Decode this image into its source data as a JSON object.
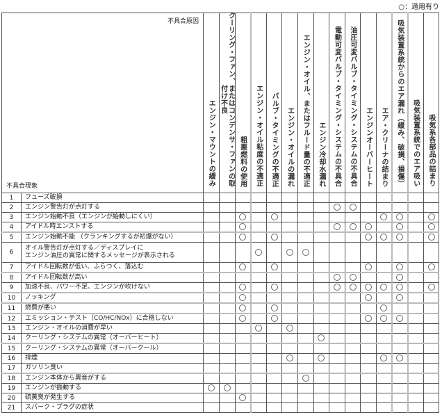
{
  "legend": "○：適用有り",
  "header": {
    "cause_title": "不具合原因",
    "symptom_title": "不具合現象"
  },
  "causes": [
    "エンジン・マウントの緩み",
    "クーリング・ファン、またはコンデンサ・ファンの取付け不良",
    "粗悪燃料の使用",
    "エンジン・オイル粘度の不適正",
    "バルブ・タイミングの不適正",
    "エンジン・オイルの漏れ",
    "エンジン・オイル、またはフルード量の不適正",
    "エンジン冷却水漏れ",
    "電動可変バルブ・タイミング・システムの不具合",
    "油圧可変バルブ・タイミング・システムの不具合",
    "エンジンオーバーヒート",
    "エア・クリーナの詰まり",
    "吸気装置系統からのエア漏れ（緩み、破損、損傷）",
    "吸気装置系統でのエア吸い",
    "吸気系各部品の詰まり"
  ],
  "mark_symbol": "○",
  "symptoms": [
    {
      "no": "1",
      "text": "フューズ破損",
      "marks": []
    },
    {
      "no": "2",
      "text": "エンジン警告灯が点灯する",
      "marks": [
        9,
        10
      ]
    },
    {
      "no": "3",
      "text": "エンジン始動不良（エンジンが始動しにくい）",
      "marks": [
        3,
        5,
        12,
        13,
        15
      ]
    },
    {
      "no": "4",
      "text": "アイドル時エンストする",
      "marks": [
        3,
        9,
        10,
        11,
        13,
        15
      ]
    },
    {
      "no": "5",
      "text": "エンジン始動不能 （クランキングするが初爆がない）",
      "marks": [
        3,
        5,
        11,
        12,
        13,
        15
      ]
    },
    {
      "no": "6",
      "text": "オイル警告灯が点灯する／ディスプレイに\nエンジン油圧の異常に関するメッセージが表示される",
      "marks": [
        4,
        6,
        7
      ]
    },
    {
      "no": "7",
      "text": "アイドル回転数が低い、ふらつく、落込む",
      "marks": [
        3,
        5,
        11,
        13,
        15
      ]
    },
    {
      "no": "8",
      "text": "アイドル回転数が高い",
      "marks": [
        9,
        10,
        13
      ]
    },
    {
      "no": "9",
      "text": "加速不良、パワー不足、エンジンが吹けない",
      "marks": [
        3,
        5,
        9,
        10,
        11,
        12,
        13,
        15
      ]
    },
    {
      "no": "10",
      "text": "ノッキング",
      "marks": [
        3,
        11,
        13
      ]
    },
    {
      "no": "11",
      "text": "燃費が悪い",
      "marks": [
        3,
        5,
        12
      ]
    },
    {
      "no": "12",
      "text": "エミッション・テスト（CO/HC/NOx）に合格しない",
      "marks": [
        3,
        5,
        11,
        12,
        13
      ]
    },
    {
      "no": "13",
      "text": "エンジン・オイルの消費が早い",
      "marks": [
        4,
        6
      ]
    },
    {
      "no": "14",
      "text": "クーリング・システムの異常（オーバーヒート）",
      "marks": [
        8
      ]
    },
    {
      "no": "15",
      "text": "クーリング・システムの異常（オーバークール）",
      "marks": []
    },
    {
      "no": "16",
      "text": "排煙",
      "marks": [
        6,
        8,
        12,
        13
      ]
    },
    {
      "no": "17",
      "text": "ガソリン臭い",
      "marks": []
    },
    {
      "no": "18",
      "text": "エンジン本体から異音がする",
      "marks": [
        7
      ]
    },
    {
      "no": "19",
      "text": "エンジンが振動する",
      "marks": [
        1,
        2
      ]
    },
    {
      "no": "20",
      "text": "硫黄臭が発生する",
      "marks": [
        3
      ]
    },
    {
      "no": "21",
      "text": "スパーク・プラグの症状",
      "marks": []
    }
  ]
}
